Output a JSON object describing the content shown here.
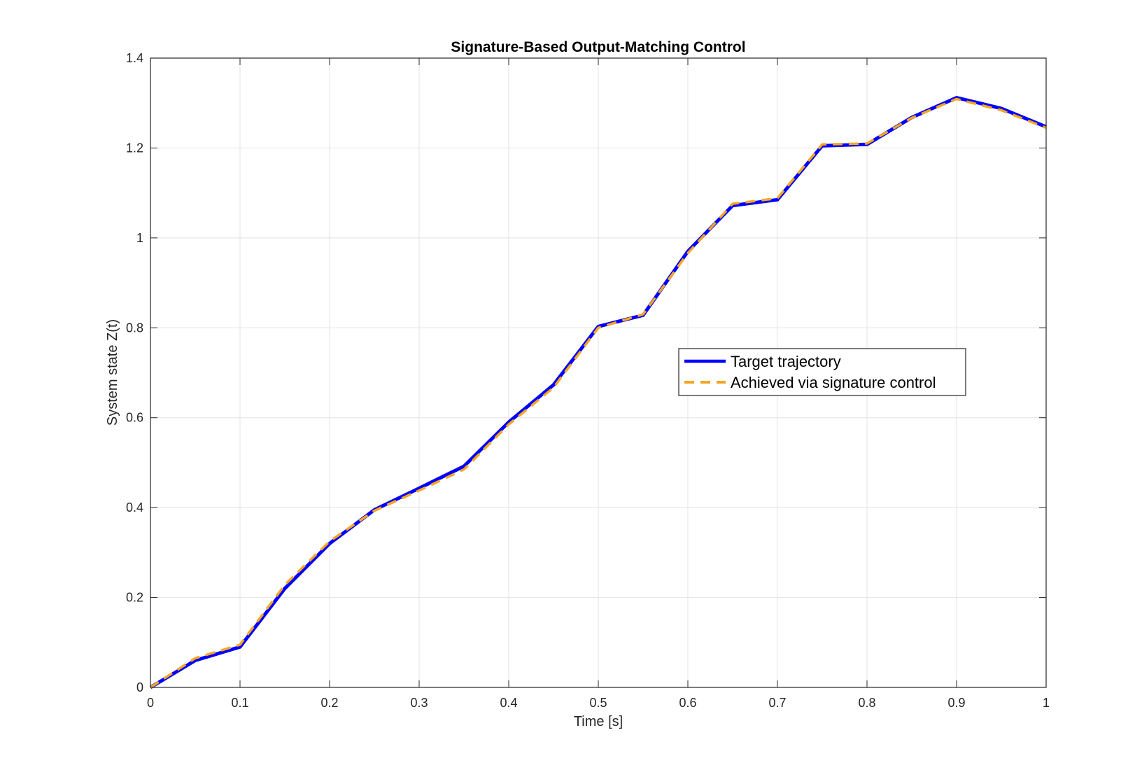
{
  "chart_data": {
    "type": "line",
    "title": "Signature-Based Output-Matching Control",
    "xlabel": "Time [s]",
    "ylabel": "System state Z(t)",
    "xlim": [
      0,
      1
    ],
    "ylim": [
      0,
      1.4
    ],
    "xticks": [
      0,
      0.1,
      0.2,
      0.3,
      0.4,
      0.5,
      0.6,
      0.7,
      0.8,
      0.9,
      1
    ],
    "xtick_labels": [
      "0",
      "0.1",
      "0.2",
      "0.3",
      "0.4",
      "0.5",
      "0.6",
      "0.7",
      "0.8",
      "0.9",
      "1"
    ],
    "yticks": [
      0,
      0.2,
      0.4,
      0.6,
      0.8,
      1,
      1.2,
      1.4
    ],
    "ytick_labels": [
      "0",
      "0.2",
      "0.4",
      "0.6",
      "0.8",
      "1",
      "1.2",
      "1.4"
    ],
    "grid": true,
    "legend_position": "center-right",
    "x": [
      0,
      0.05,
      0.1,
      0.15,
      0.2,
      0.25,
      0.3,
      0.35,
      0.4,
      0.45,
      0.5,
      0.55,
      0.6,
      0.65,
      0.7,
      0.75,
      0.8,
      0.85,
      0.9,
      0.95,
      1
    ],
    "series": [
      {
        "name": "Target trajectory",
        "color": "#0000ff",
        "style": "solid",
        "values": [
          0,
          0.06,
          0.09,
          0.22,
          0.32,
          0.395,
          0.443,
          0.492,
          0.59,
          0.673,
          0.803,
          0.828,
          0.97,
          1.072,
          1.085,
          1.205,
          1.208,
          1.268,
          1.312,
          1.288,
          1.247
        ]
      },
      {
        "name": "Achieved via signature control",
        "color": "#f5a623",
        "style": "dashed",
        "values": [
          0,
          0.065,
          0.095,
          0.228,
          0.325,
          0.393,
          0.438,
          0.485,
          0.585,
          0.667,
          0.8,
          0.83,
          0.966,
          1.076,
          1.088,
          1.208,
          1.21,
          1.267,
          1.309,
          1.284,
          1.245
        ]
      }
    ]
  }
}
